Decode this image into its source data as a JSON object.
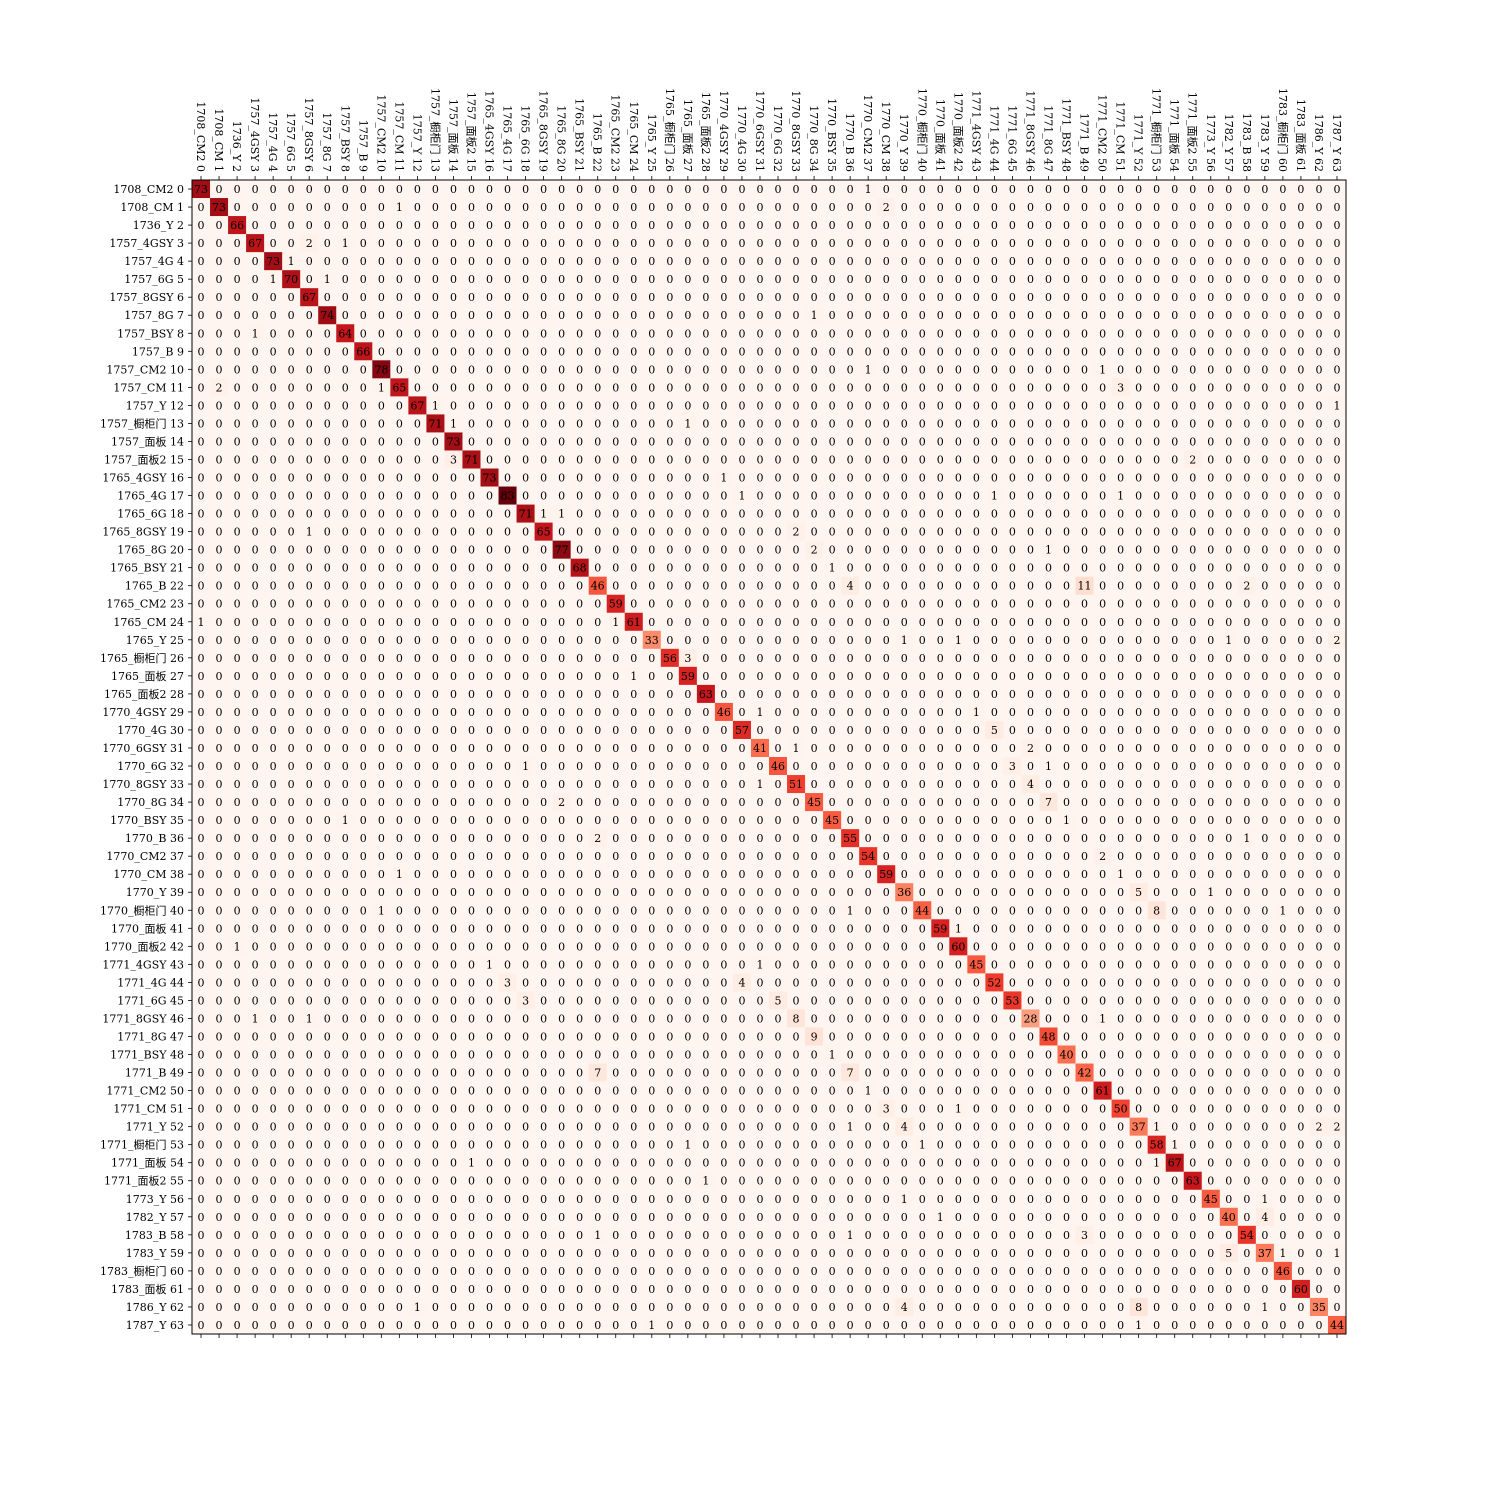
{
  "chart_data": {
    "type": "heatmap",
    "title": "",
    "xlabel": "",
    "ylabel": "",
    "colormap": "Reds",
    "x_labels_position": "top",
    "labels": [
      "1708_CM2 0",
      "1708_CM 1",
      "1736_Y 2",
      "1757_4GSY 3",
      "1757_4G 4",
      "1757_6G 5",
      "1757_8GSY 6",
      "1757_8G 7",
      "1757_BSY 8",
      "1757_B 9",
      "1757_CM2 10",
      "1757_CM 11",
      "1757_Y 12",
      "1757_橱柜门 13",
      "1757_面板 14",
      "1757_面板2 15",
      "1765_4GSY 16",
      "1765_4G 17",
      "1765_6G 18",
      "1765_8GSY 19",
      "1765_8G 20",
      "1765_BSY 21",
      "1765_B 22",
      "1765_CM2 23",
      "1765_CM 24",
      "1765_Y 25",
      "1765_橱柜门 26",
      "1765_面板 27",
      "1765_面板2 28",
      "1770_4GSY 29",
      "1770_4G 30",
      "1770_6GSY 31",
      "1770_6G 32",
      "1770_8GSY 33",
      "1770_8G 34",
      "1770_BSY 35",
      "1770_B 36",
      "1770_CM2 37",
      "1770_CM 38",
      "1770_Y 39",
      "1770_橱柜门 40",
      "1770_面板 41",
      "1770_面板2 42",
      "1771_4GSY 43",
      "1771_4G 44",
      "1771_6G 45",
      "1771_8GSY 46",
      "1771_8G 47",
      "1771_BSY 48",
      "1771_B 49",
      "1771_CM2 50",
      "1771_CM 51",
      "1771_Y 52",
      "1771_橱柜门 53",
      "1771_面板 54",
      "1771_面板2 55",
      "1773_Y 56",
      "1782_Y 57",
      "1783_B 58",
      "1783_Y 59",
      "1783_橱柜门 60",
      "1783_面板 61",
      "1786_Y 62",
      "1787_Y 63"
    ],
    "diagonal": [
      73,
      73,
      66,
      67,
      73,
      70,
      67,
      74,
      64,
      66,
      78,
      65,
      67,
      71,
      73,
      71,
      73,
      83,
      71,
      65,
      77,
      68,
      46,
      59,
      61,
      33,
      56,
      59,
      63,
      46,
      57,
      41,
      46,
      51,
      45,
      45,
      55,
      54,
      59,
      36,
      44,
      59,
      60,
      45,
      52,
      53,
      28,
      48,
      40,
      42,
      61,
      50,
      37,
      58,
      67,
      63,
      45,
      40,
      54,
      37,
      46,
      60,
      35,
      44
    ],
    "off_diagonal": [
      [
        0,
        37,
        1
      ],
      [
        1,
        11,
        1
      ],
      [
        1,
        38,
        2
      ],
      [
        3,
        6,
        2
      ],
      [
        3,
        8,
        1
      ],
      [
        4,
        5,
        1
      ],
      [
        5,
        4,
        1
      ],
      [
        5,
        7,
        1
      ],
      [
        7,
        34,
        1
      ],
      [
        8,
        3,
        1
      ],
      [
        10,
        37,
        1
      ],
      [
        10,
        50,
        1
      ],
      [
        11,
        1,
        2
      ],
      [
        11,
        10,
        1
      ],
      [
        11,
        51,
        3
      ],
      [
        12,
        13,
        1
      ],
      [
        12,
        63,
        1
      ],
      [
        13,
        14,
        1
      ],
      [
        13,
        27,
        1
      ],
      [
        15,
        14,
        3
      ],
      [
        15,
        55,
        2
      ],
      [
        16,
        29,
        1
      ],
      [
        17,
        30,
        1
      ],
      [
        17,
        44,
        1
      ],
      [
        17,
        51,
        1
      ],
      [
        18,
        19,
        1
      ],
      [
        18,
        20,
        1
      ],
      [
        19,
        6,
        1
      ],
      [
        19,
        33,
        2
      ],
      [
        20,
        34,
        2
      ],
      [
        20,
        47,
        1
      ],
      [
        21,
        35,
        1
      ],
      [
        22,
        36,
        4
      ],
      [
        22,
        49,
        11
      ],
      [
        22,
        58,
        2
      ],
      [
        24,
        0,
        1
      ],
      [
        24,
        23,
        1
      ],
      [
        25,
        39,
        1
      ],
      [
        25,
        42,
        1
      ],
      [
        25,
        57,
        1
      ],
      [
        25,
        63,
        2
      ],
      [
        26,
        27,
        3
      ],
      [
        27,
        24,
        1
      ],
      [
        29,
        31,
        1
      ],
      [
        29,
        43,
        1
      ],
      [
        30,
        44,
        5
      ],
      [
        31,
        33,
        1
      ],
      [
        31,
        46,
        2
      ],
      [
        32,
        18,
        1
      ],
      [
        32,
        45,
        3
      ],
      [
        32,
        47,
        1
      ],
      [
        33,
        31,
        1
      ],
      [
        33,
        46,
        4
      ],
      [
        34,
        20,
        2
      ],
      [
        34,
        47,
        7
      ],
      [
        35,
        8,
        1
      ],
      [
        35,
        48,
        1
      ],
      [
        36,
        22,
        2
      ],
      [
        36,
        58,
        1
      ],
      [
        37,
        50,
        2
      ],
      [
        38,
        11,
        1
      ],
      [
        38,
        51,
        1
      ],
      [
        39,
        52,
        5
      ],
      [
        39,
        56,
        1
      ],
      [
        40,
        10,
        1
      ],
      [
        40,
        36,
        1
      ],
      [
        40,
        53,
        8
      ],
      [
        40,
        60,
        1
      ],
      [
        41,
        42,
        1
      ],
      [
        42,
        2,
        1
      ],
      [
        43,
        16,
        1
      ],
      [
        43,
        31,
        1
      ],
      [
        44,
        17,
        3
      ],
      [
        44,
        30,
        4
      ],
      [
        45,
        18,
        3
      ],
      [
        45,
        32,
        5
      ],
      [
        46,
        3,
        1
      ],
      [
        46,
        6,
        1
      ],
      [
        46,
        33,
        8
      ],
      [
        46,
        50,
        1
      ],
      [
        47,
        34,
        9
      ],
      [
        48,
        35,
        1
      ],
      [
        49,
        22,
        7
      ],
      [
        49,
        36,
        7
      ],
      [
        50,
        37,
        1
      ],
      [
        51,
        38,
        3
      ],
      [
        51,
        42,
        1
      ],
      [
        52,
        36,
        1
      ],
      [
        52,
        39,
        4
      ],
      [
        52,
        53,
        1
      ],
      [
        52,
        62,
        2
      ],
      [
        52,
        63,
        2
      ],
      [
        53,
        27,
        1
      ],
      [
        53,
        40,
        1
      ],
      [
        53,
        54,
        1
      ],
      [
        54,
        15,
        1
      ],
      [
        54,
        53,
        1
      ],
      [
        55,
        28,
        1
      ],
      [
        56,
        39,
        1
      ],
      [
        56,
        59,
        1
      ],
      [
        57,
        41,
        1
      ],
      [
        57,
        59,
        4
      ],
      [
        58,
        22,
        1
      ],
      [
        58,
        36,
        1
      ],
      [
        58,
        49,
        3
      ],
      [
        59,
        57,
        5
      ],
      [
        59,
        60,
        1
      ],
      [
        59,
        63,
        1
      ],
      [
        62,
        12,
        1
      ],
      [
        62,
        39,
        4
      ],
      [
        62,
        52,
        8
      ],
      [
        62,
        59,
        1
      ],
      [
        63,
        25,
        1
      ],
      [
        63,
        52,
        1
      ]
    ]
  }
}
